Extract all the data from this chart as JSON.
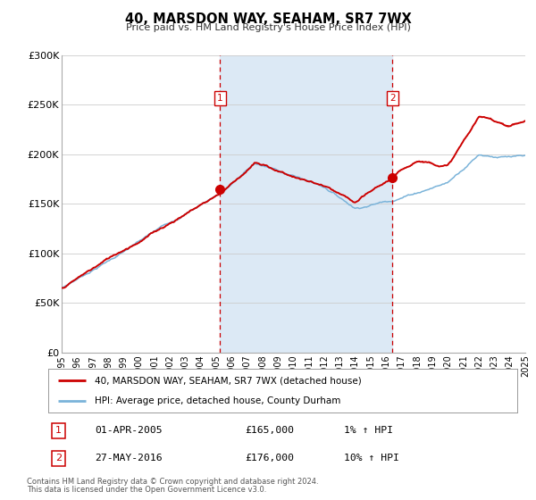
{
  "title": "40, MARSDON WAY, SEAHAM, SR7 7WX",
  "subtitle": "Price paid vs. HM Land Registry's House Price Index (HPI)",
  "legend_label_red": "40, MARSDON WAY, SEAHAM, SR7 7WX (detached house)",
  "legend_label_blue": "HPI: Average price, detached house, County Durham",
  "marker1_date": "01-APR-2005",
  "marker1_price": 165000,
  "marker1_hpi": "1% ↑ HPI",
  "marker2_date": "27-MAY-2016",
  "marker2_price": 176000,
  "marker2_hpi": "10% ↑ HPI",
  "footnote1": "Contains HM Land Registry data © Crown copyright and database right 2024.",
  "footnote2": "This data is licensed under the Open Government Licence v3.0.",
  "xmin": 1995,
  "xmax": 2025,
  "ymin": 0,
  "ymax": 300000,
  "yticks": [
    0,
    50000,
    100000,
    150000,
    200000,
    250000,
    300000
  ],
  "ytick_labels": [
    "£0",
    "£50K",
    "£100K",
    "£150K",
    "£200K",
    "£250K",
    "£300K"
  ],
  "xticks": [
    1995,
    1996,
    1997,
    1998,
    1999,
    2000,
    2001,
    2002,
    2003,
    2004,
    2005,
    2006,
    2007,
    2008,
    2009,
    2010,
    2011,
    2012,
    2013,
    2014,
    2015,
    2016,
    2017,
    2018,
    2019,
    2020,
    2021,
    2022,
    2023,
    2024,
    2025
  ],
  "vline1_x": 2005.25,
  "vline2_x": 2016.41,
  "shade_color": "#dce9f5",
  "red_color": "#cc0000",
  "blue_color": "#7ab3d9",
  "grid_color": "#cccccc",
  "spine_color": "#aaaaaa"
}
